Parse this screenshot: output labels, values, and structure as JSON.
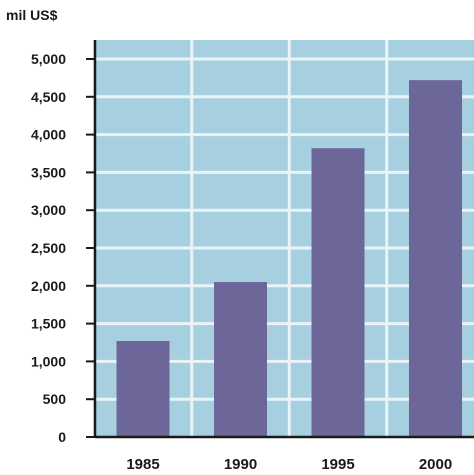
{
  "chart_data": {
    "type": "bar",
    "unit_label": "mil US$",
    "categories": [
      "1985",
      "1990",
      "1995",
      "2000"
    ],
    "values": [
      1270,
      2050,
      3820,
      4720
    ],
    "ylim": [
      0,
      5000
    ],
    "yticks": [
      "0",
      "500",
      "1,000",
      "1,500",
      "2,000",
      "2,500",
      "3,000",
      "3,500",
      "4,000",
      "4,500",
      "5,000"
    ],
    "grid": true,
    "colors": {
      "plot_background": "#a6d0e0",
      "grid": "#eaf4f8",
      "bar": "#6d6698",
      "axis": "#1a1a1a"
    }
  }
}
